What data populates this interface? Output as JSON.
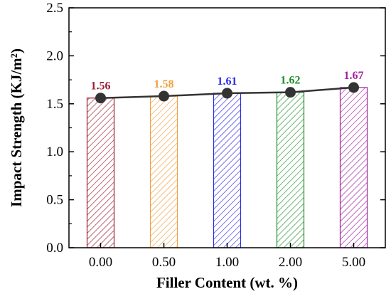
{
  "chart_data": {
    "type": "bar",
    "categories": [
      "0.00",
      "0.50",
      "1.00",
      "2.00",
      "5.00"
    ],
    "values": [
      1.56,
      1.58,
      1.61,
      1.62,
      1.67
    ],
    "data_labels": [
      "1.56",
      "1.58",
      "1.61",
      "1.62",
      "1.67"
    ],
    "bar_colors": [
      "#9b1c2e",
      "#f0a040",
      "#2a2ae8",
      "#1f8f2a",
      "#a020a0"
    ],
    "overlay_line": {
      "type": "line",
      "color": "#333333",
      "marker": "circle",
      "values": [
        1.56,
        1.58,
        1.61,
        1.62,
        1.67
      ]
    },
    "bar_fill": "hatched",
    "xlabel": "Filler Content (wt. %)",
    "ylabel": "Impact Strength (KJ/m²)",
    "ylim": [
      0.0,
      2.5
    ],
    "yticks": [
      "0.0",
      "0.5",
      "1.0",
      "1.5",
      "2.0",
      "2.5"
    ],
    "grid": false,
    "legend": "none"
  }
}
